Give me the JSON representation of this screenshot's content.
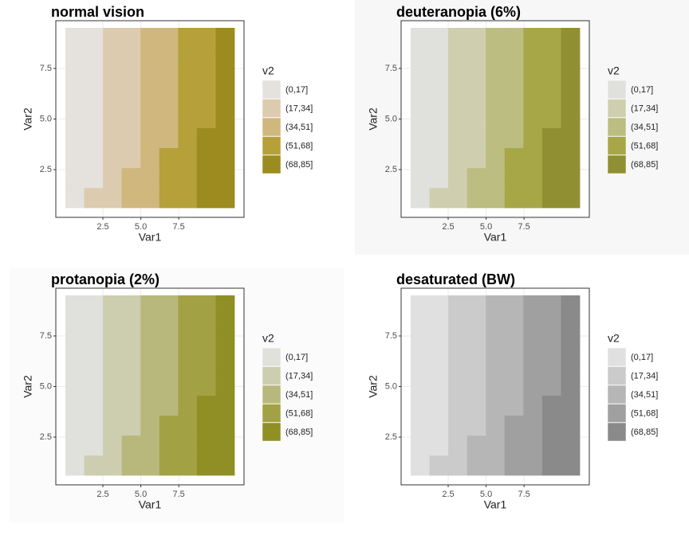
{
  "chart_data": [
    {
      "type": "heatmap",
      "title": "normal vision",
      "x_label": "Var1",
      "y_label": "Var2",
      "background": "#ffffff",
      "xlim": [
        -0.6,
        11.8
      ],
      "ylim": [
        0.14,
        9.86
      ],
      "xticks": [
        2.5,
        {
          "value": 5,
          "label": "5.0"
        },
        7.5
      ],
      "yticks": [
        2.5,
        {
          "value": 5,
          "label": "5.0"
        },
        7.5
      ],
      "grid": true,
      "legend": {
        "title": "v2",
        "levels": [
          "(0,17]",
          "(17,34]",
          "(34,51]",
          "(51,68]",
          "(68,85]"
        ],
        "colors": [
          "#e5e1dd",
          "#dccbae",
          "#cfb77e",
          "#b5a03a",
          "#9c8b1e"
        ]
      },
      "z": [
        [
          "(0,17]",
          "(17,34]",
          "(17,34]",
          "(34,51]",
          "(34,51]",
          "(51,68]",
          "(51,68]",
          "(68,85]",
          "(68,85]"
        ],
        [
          "(0,17]",
          "(0,17]",
          "(17,34]",
          "(34,51]",
          "(34,51]",
          "(51,68]",
          "(51,68]",
          "(68,85]",
          "(68,85]"
        ],
        [
          "(0,17]",
          "(0,17]",
          "(17,34]",
          "(17,34]",
          "(34,51]",
          "(51,68]",
          "(51,68]",
          "(68,85]",
          "(68,85]"
        ],
        [
          "(0,17]",
          "(0,17]",
          "(17,34]",
          "(17,34]",
          "(34,51]",
          "(34,51]",
          "(51,68]",
          "(68,85]",
          "(68,85]"
        ],
        [
          "(0,17]",
          "(0,17]",
          "(17,34]",
          "(17,34]",
          "(34,51]",
          "(34,51]",
          "(51,68]",
          "(51,68]",
          "(68,85]"
        ],
        [
          "(0,17]",
          "(0,17]",
          "(17,34]",
          "(17,34]",
          "(34,51]",
          "(34,51]",
          "(51,68]",
          "(51,68]",
          "(68,85]"
        ],
        [
          "(0,17]",
          "(0,17]",
          "(17,34]",
          "(17,34]",
          "(34,51]",
          "(34,51]",
          "(51,68]",
          "(51,68]",
          "(68,85]"
        ],
        [
          "(0,17]",
          "(0,17]",
          "(17,34]",
          "(17,34]",
          "(34,51]",
          "(34,51]",
          "(51,68]",
          "(51,68]",
          "(68,85]"
        ],
        [
          "(0,17]",
          "(0,17]",
          "(17,34]",
          "(17,34]",
          "(34,51]",
          "(34,51]",
          "(51,68]",
          "(51,68]",
          "(68,85]"
        ]
      ]
    },
    {
      "type": "heatmap",
      "title": "deuteranopia (6%)",
      "x_label": "Var1",
      "y_label": "Var2",
      "background": "#f7f7f7",
      "xlim": [
        -0.6,
        11.8
      ],
      "ylim": [
        0.14,
        9.86
      ],
      "xticks": [
        2.5,
        {
          "value": 5,
          "label": "5.0"
        },
        7.5
      ],
      "yticks": [
        2.5,
        {
          "value": 5,
          "label": "5.0"
        },
        7.5
      ],
      "grid": true,
      "legend": {
        "title": "v2",
        "levels": [
          "(0,17]",
          "(17,34]",
          "(34,51]",
          "(51,68]",
          "(68,85]"
        ],
        "colors": [
          "#e0e0dc",
          "#cfcfb0",
          "#bcbd80",
          "#a7a747",
          "#909033"
        ]
      },
      "z": [
        [
          "(0,17]",
          "(17,34]",
          "(17,34]",
          "(34,51]",
          "(34,51]",
          "(51,68]",
          "(51,68]",
          "(68,85]",
          "(68,85]"
        ],
        [
          "(0,17]",
          "(0,17]",
          "(17,34]",
          "(34,51]",
          "(34,51]",
          "(51,68]",
          "(51,68]",
          "(68,85]",
          "(68,85]"
        ],
        [
          "(0,17]",
          "(0,17]",
          "(17,34]",
          "(17,34]",
          "(34,51]",
          "(51,68]",
          "(51,68]",
          "(68,85]",
          "(68,85]"
        ],
        [
          "(0,17]",
          "(0,17]",
          "(17,34]",
          "(17,34]",
          "(34,51]",
          "(34,51]",
          "(51,68]",
          "(68,85]",
          "(68,85]"
        ],
        [
          "(0,17]",
          "(0,17]",
          "(17,34]",
          "(17,34]",
          "(34,51]",
          "(34,51]",
          "(51,68]",
          "(51,68]",
          "(68,85]"
        ],
        [
          "(0,17]",
          "(0,17]",
          "(17,34]",
          "(17,34]",
          "(34,51]",
          "(34,51]",
          "(51,68]",
          "(51,68]",
          "(68,85]"
        ],
        [
          "(0,17]",
          "(0,17]",
          "(17,34]",
          "(17,34]",
          "(34,51]",
          "(34,51]",
          "(51,68]",
          "(51,68]",
          "(68,85]"
        ],
        [
          "(0,17]",
          "(0,17]",
          "(17,34]",
          "(17,34]",
          "(34,51]",
          "(34,51]",
          "(51,68]",
          "(51,68]",
          "(68,85]"
        ],
        [
          "(0,17]",
          "(0,17]",
          "(17,34]",
          "(17,34]",
          "(34,51]",
          "(34,51]",
          "(51,68]",
          "(51,68]",
          "(68,85]"
        ]
      ]
    },
    {
      "type": "heatmap",
      "title": "protanopia (2%)",
      "x_label": "Var1",
      "y_label": "Var2",
      "background": "#fbfbfb",
      "xlim": [
        -0.6,
        11.8
      ],
      "ylim": [
        0.14,
        9.86
      ],
      "xticks": [
        2.5,
        {
          "value": 5,
          "label": "5.0"
        },
        7.5
      ],
      "yticks": [
        2.5,
        {
          "value": 5,
          "label": "5.0"
        },
        7.5
      ],
      "grid": true,
      "legend": {
        "title": "v2",
        "levels": [
          "(0,17]",
          "(17,34]",
          "(34,51]",
          "(51,68]",
          "(68,85]"
        ],
        "colors": [
          "#e0e0dc",
          "#cdcdb0",
          "#b8b87c",
          "#a2a244",
          "#8f8f25"
        ]
      },
      "z": [
        [
          "(0,17]",
          "(17,34]",
          "(17,34]",
          "(34,51]",
          "(34,51]",
          "(51,68]",
          "(51,68]",
          "(68,85]",
          "(68,85]"
        ],
        [
          "(0,17]",
          "(0,17]",
          "(17,34]",
          "(34,51]",
          "(34,51]",
          "(51,68]",
          "(51,68]",
          "(68,85]",
          "(68,85]"
        ],
        [
          "(0,17]",
          "(0,17]",
          "(17,34]",
          "(17,34]",
          "(34,51]",
          "(51,68]",
          "(51,68]",
          "(68,85]",
          "(68,85]"
        ],
        [
          "(0,17]",
          "(0,17]",
          "(17,34]",
          "(17,34]",
          "(34,51]",
          "(34,51]",
          "(51,68]",
          "(68,85]",
          "(68,85]"
        ],
        [
          "(0,17]",
          "(0,17]",
          "(17,34]",
          "(17,34]",
          "(34,51]",
          "(34,51]",
          "(51,68]",
          "(51,68]",
          "(68,85]"
        ],
        [
          "(0,17]",
          "(0,17]",
          "(17,34]",
          "(17,34]",
          "(34,51]",
          "(34,51]",
          "(51,68]",
          "(51,68]",
          "(68,85]"
        ],
        [
          "(0,17]",
          "(0,17]",
          "(17,34]",
          "(17,34]",
          "(34,51]",
          "(34,51]",
          "(51,68]",
          "(51,68]",
          "(68,85]"
        ],
        [
          "(0,17]",
          "(0,17]",
          "(17,34]",
          "(17,34]",
          "(34,51]",
          "(34,51]",
          "(51,68]",
          "(51,68]",
          "(68,85]"
        ],
        [
          "(0,17]",
          "(0,17]",
          "(17,34]",
          "(17,34]",
          "(34,51]",
          "(34,51]",
          "(51,68]",
          "(51,68]",
          "(68,85]"
        ]
      ]
    },
    {
      "type": "heatmap",
      "title": "desaturated (BW)",
      "x_label": "Var1",
      "y_label": "Var2",
      "background": "#ffffff",
      "xlim": [
        -0.6,
        11.8
      ],
      "ylim": [
        0.14,
        9.86
      ],
      "xticks": [
        2.5,
        {
          "value": 5,
          "label": "5.0"
        },
        7.5
      ],
      "yticks": [
        2.5,
        {
          "value": 5,
          "label": "5.0"
        },
        7.5
      ],
      "grid": true,
      "legend": {
        "title": "v2",
        "levels": [
          "(0,17]",
          "(17,34]",
          "(34,51]",
          "(51,68]",
          "(68,85]"
        ],
        "colors": [
          "#e0e0e0",
          "#cbcbcb",
          "#b6b6b6",
          "#a0a0a0",
          "#8a8a8a"
        ]
      },
      "z": [
        [
          "(0,17]",
          "(17,34]",
          "(17,34]",
          "(34,51]",
          "(34,51]",
          "(51,68]",
          "(51,68]",
          "(68,85]",
          "(68,85]"
        ],
        [
          "(0,17]",
          "(0,17]",
          "(17,34]",
          "(34,51]",
          "(34,51]",
          "(51,68]",
          "(51,68]",
          "(68,85]",
          "(68,85]"
        ],
        [
          "(0,17]",
          "(0,17]",
          "(17,34]",
          "(17,34]",
          "(34,51]",
          "(51,68]",
          "(51,68]",
          "(68,85]",
          "(68,85]"
        ],
        [
          "(0,17]",
          "(0,17]",
          "(17,34]",
          "(17,34]",
          "(34,51]",
          "(34,51]",
          "(51,68]",
          "(68,85]",
          "(68,85]"
        ],
        [
          "(0,17]",
          "(0,17]",
          "(17,34]",
          "(17,34]",
          "(34,51]",
          "(34,51]",
          "(51,68]",
          "(51,68]",
          "(68,85]"
        ],
        [
          "(0,17]",
          "(0,17]",
          "(17,34]",
          "(17,34]",
          "(34,51]",
          "(34,51]",
          "(51,68]",
          "(51,68]",
          "(68,85]"
        ],
        [
          "(0,17]",
          "(0,17]",
          "(17,34]",
          "(17,34]",
          "(34,51]",
          "(34,51]",
          "(51,68]",
          "(51,68]",
          "(68,85]"
        ],
        [
          "(0,17]",
          "(0,17]",
          "(17,34]",
          "(17,34]",
          "(34,51]",
          "(34,51]",
          "(51,68]",
          "(51,68]",
          "(68,85]"
        ],
        [
          "(0,17]",
          "(0,17]",
          "(17,34]",
          "(17,34]",
          "(34,51]",
          "(34,51]",
          "(51,68]",
          "(51,68]",
          "(68,85]"
        ]
      ]
    }
  ]
}
